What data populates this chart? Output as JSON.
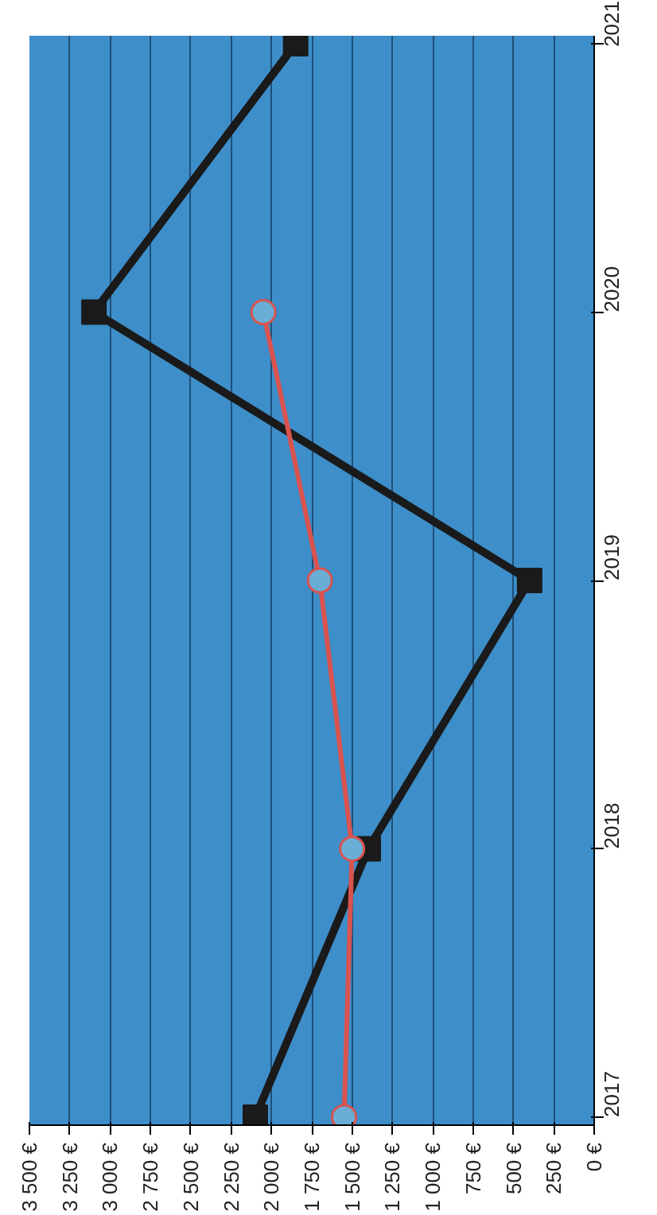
{
  "chart_data": {
    "type": "line",
    "orientation": "horizontal",
    "categories": [
      "2021",
      "2020",
      "2019",
      "2018",
      "2017"
    ],
    "series": [
      {
        "color": "#1a1a1a",
        "marker": "square",
        "values": [
          1850,
          3100,
          400,
          1400,
          2100
        ]
      },
      {
        "color": "#d9534f",
        "marker": "circle",
        "values": [
          null,
          2050,
          1700,
          1500,
          1550
        ]
      }
    ],
    "xlim": [
      3500,
      0
    ],
    "xticks": [
      {
        "value": 3500,
        "label": "3 500 €"
      },
      {
        "value": 3250,
        "label": "3 250 €"
      },
      {
        "value": 3000,
        "label": "3 000 €"
      },
      {
        "value": 2750,
        "label": "2 750 €"
      },
      {
        "value": 2500,
        "label": "2 500 €"
      },
      {
        "value": 2250,
        "label": "2 250 €"
      },
      {
        "value": 2000,
        "label": "2 000 €"
      },
      {
        "value": 1750,
        "label": "1 750 €"
      },
      {
        "value": 1500,
        "label": "1 500 €"
      },
      {
        "value": 1250,
        "label": "1 250 €"
      },
      {
        "value": 1000,
        "label": "1 000 €"
      },
      {
        "value": 750,
        "label": "750 €"
      },
      {
        "value": 500,
        "label": "500 €"
      },
      {
        "value": 250,
        "label": "250 €"
      },
      {
        "value": 0,
        "label": "0 €"
      }
    ],
    "grid": "x",
    "line_style": "solid"
  }
}
